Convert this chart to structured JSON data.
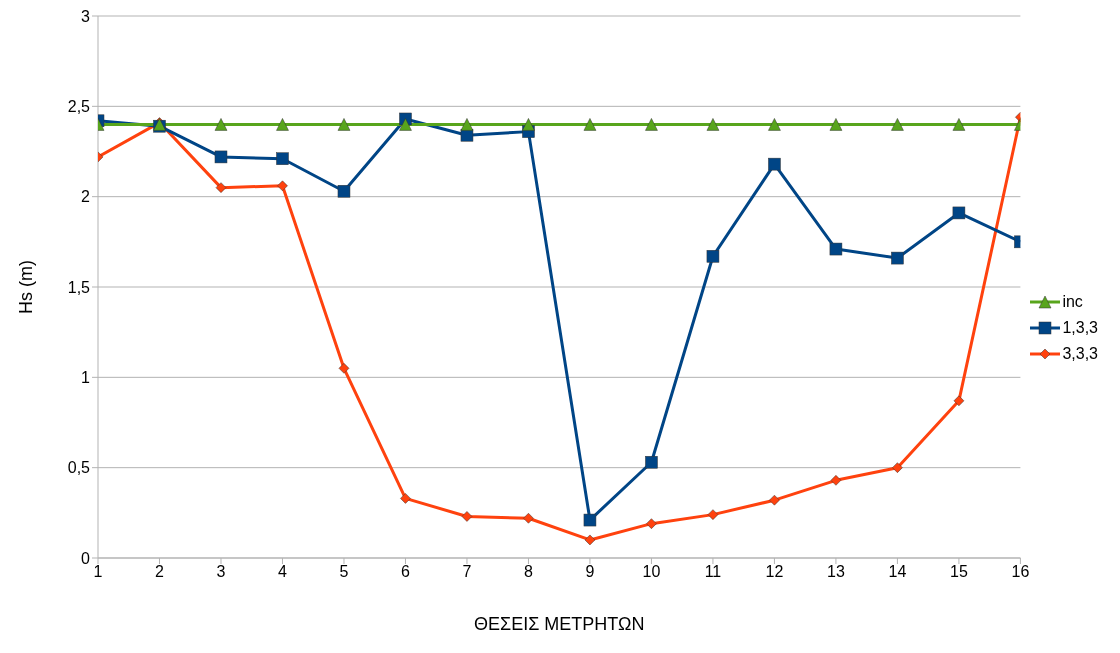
{
  "chart_data": {
    "type": "line",
    "xlabel": "ΘΕΣΕΙΣ ΜΕΤΡΗΤΩΝ",
    "ylabel": "Hs (m)",
    "x": [
      1,
      2,
      3,
      4,
      5,
      6,
      7,
      8,
      9,
      10,
      11,
      12,
      13,
      14,
      15,
      16
    ],
    "xlim": [
      1,
      16
    ],
    "xticks": [
      1,
      2,
      3,
      4,
      5,
      6,
      7,
      8,
      9,
      10,
      11,
      12,
      13,
      14,
      15,
      16
    ],
    "ylim": [
      0,
      3
    ],
    "yticks": [
      0,
      {
        "value": 0.5,
        "label": "0,5"
      },
      1,
      {
        "value": 1.5,
        "label": "1,5"
      },
      2,
      {
        "value": 2.5,
        "label": "2,5"
      },
      3
    ],
    "grid": "y",
    "legend": "right",
    "line_style": "solid",
    "series": [
      {
        "name": "inc",
        "color": "#58a51c",
        "marker": "triangle",
        "values": [
          2.4,
          2.4,
          2.4,
          2.4,
          2.4,
          2.4,
          2.4,
          2.4,
          2.4,
          2.4,
          2.4,
          2.4,
          2.4,
          2.4,
          2.4,
          2.4
        ]
      },
      {
        "name": "1,3,3",
        "color": "#004586",
        "marker": "square",
        "values": [
          2.42,
          2.39,
          2.22,
          2.21,
          2.03,
          2.43,
          2.34,
          2.36,
          0.21,
          0.53,
          1.67,
          2.18,
          1.71,
          1.66,
          1.91,
          1.75
        ]
      },
      {
        "name": "3,3,3",
        "color": "#ff420e",
        "marker": "diamond",
        "values": [
          2.22,
          2.41,
          2.05,
          2.06,
          1.05,
          0.33,
          0.23,
          0.22,
          0.1,
          0.19,
          0.24,
          0.32,
          0.43,
          0.5,
          0.87,
          2.44
        ]
      }
    ]
  }
}
